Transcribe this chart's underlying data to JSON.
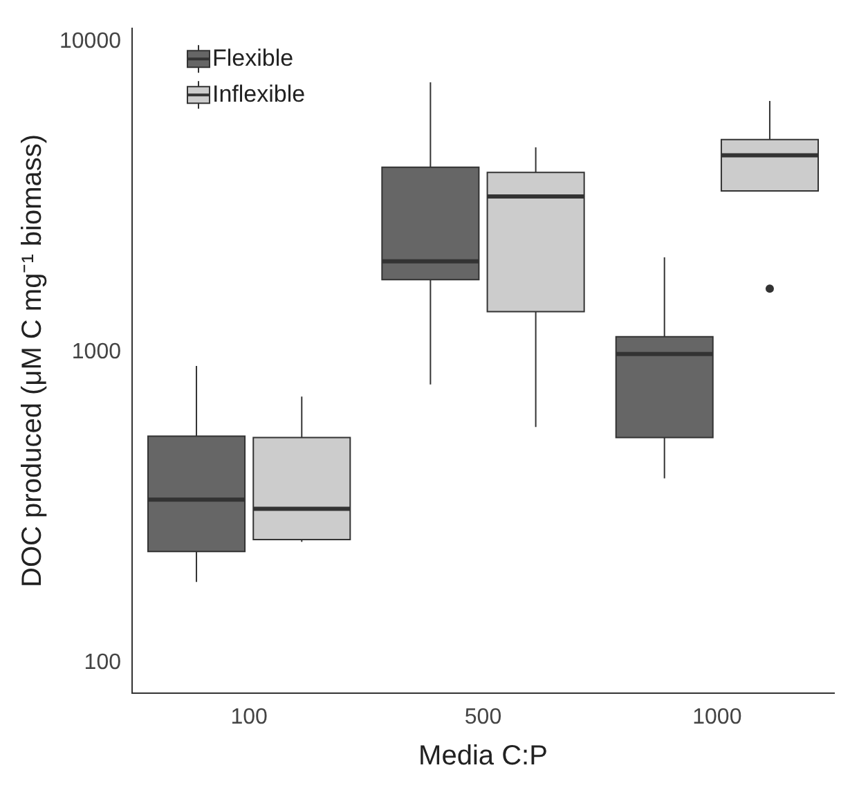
{
  "chart_data": {
    "type": "box",
    "xlabel": "Media C:P",
    "ylabel": "DOC produced (μM C mg⁻¹ biomass)",
    "categories": [
      "100",
      "500",
      "1000"
    ],
    "log": "y",
    "ylim": [
      80,
      11000
    ],
    "yticks": [
      100,
      1000,
      10000
    ],
    "grid": false,
    "legend": "top left",
    "series": [
      {
        "name": "Flexible",
        "color": "#666666",
        "boxes": [
          {
            "low": 182,
            "q1": 228,
            "median": 335,
            "q3": 536,
            "high": 902
          },
          {
            "low": 787,
            "q1": 1710,
            "median": 1960,
            "q3": 3935,
            "high": 7380
          },
          {
            "low": 392,
            "q1": 531,
            "median": 986,
            "q3": 1120,
            "high": 2018
          }
        ]
      },
      {
        "name": "Inflexible",
        "color": "#cccccc",
        "boxes": [
          {
            "low": 245,
            "q1": 249,
            "median": 313,
            "q3": 531,
            "high": 719
          },
          {
            "low": 574,
            "q1": 1350,
            "median": 3170,
            "q3": 3785,
            "high": 4560
          },
          {
            "low": 3300,
            "q1": 3300,
            "median": 4300,
            "q3": 4830,
            "high": 6430,
            "outliers": [
              1600
            ]
          }
        ]
      }
    ]
  }
}
